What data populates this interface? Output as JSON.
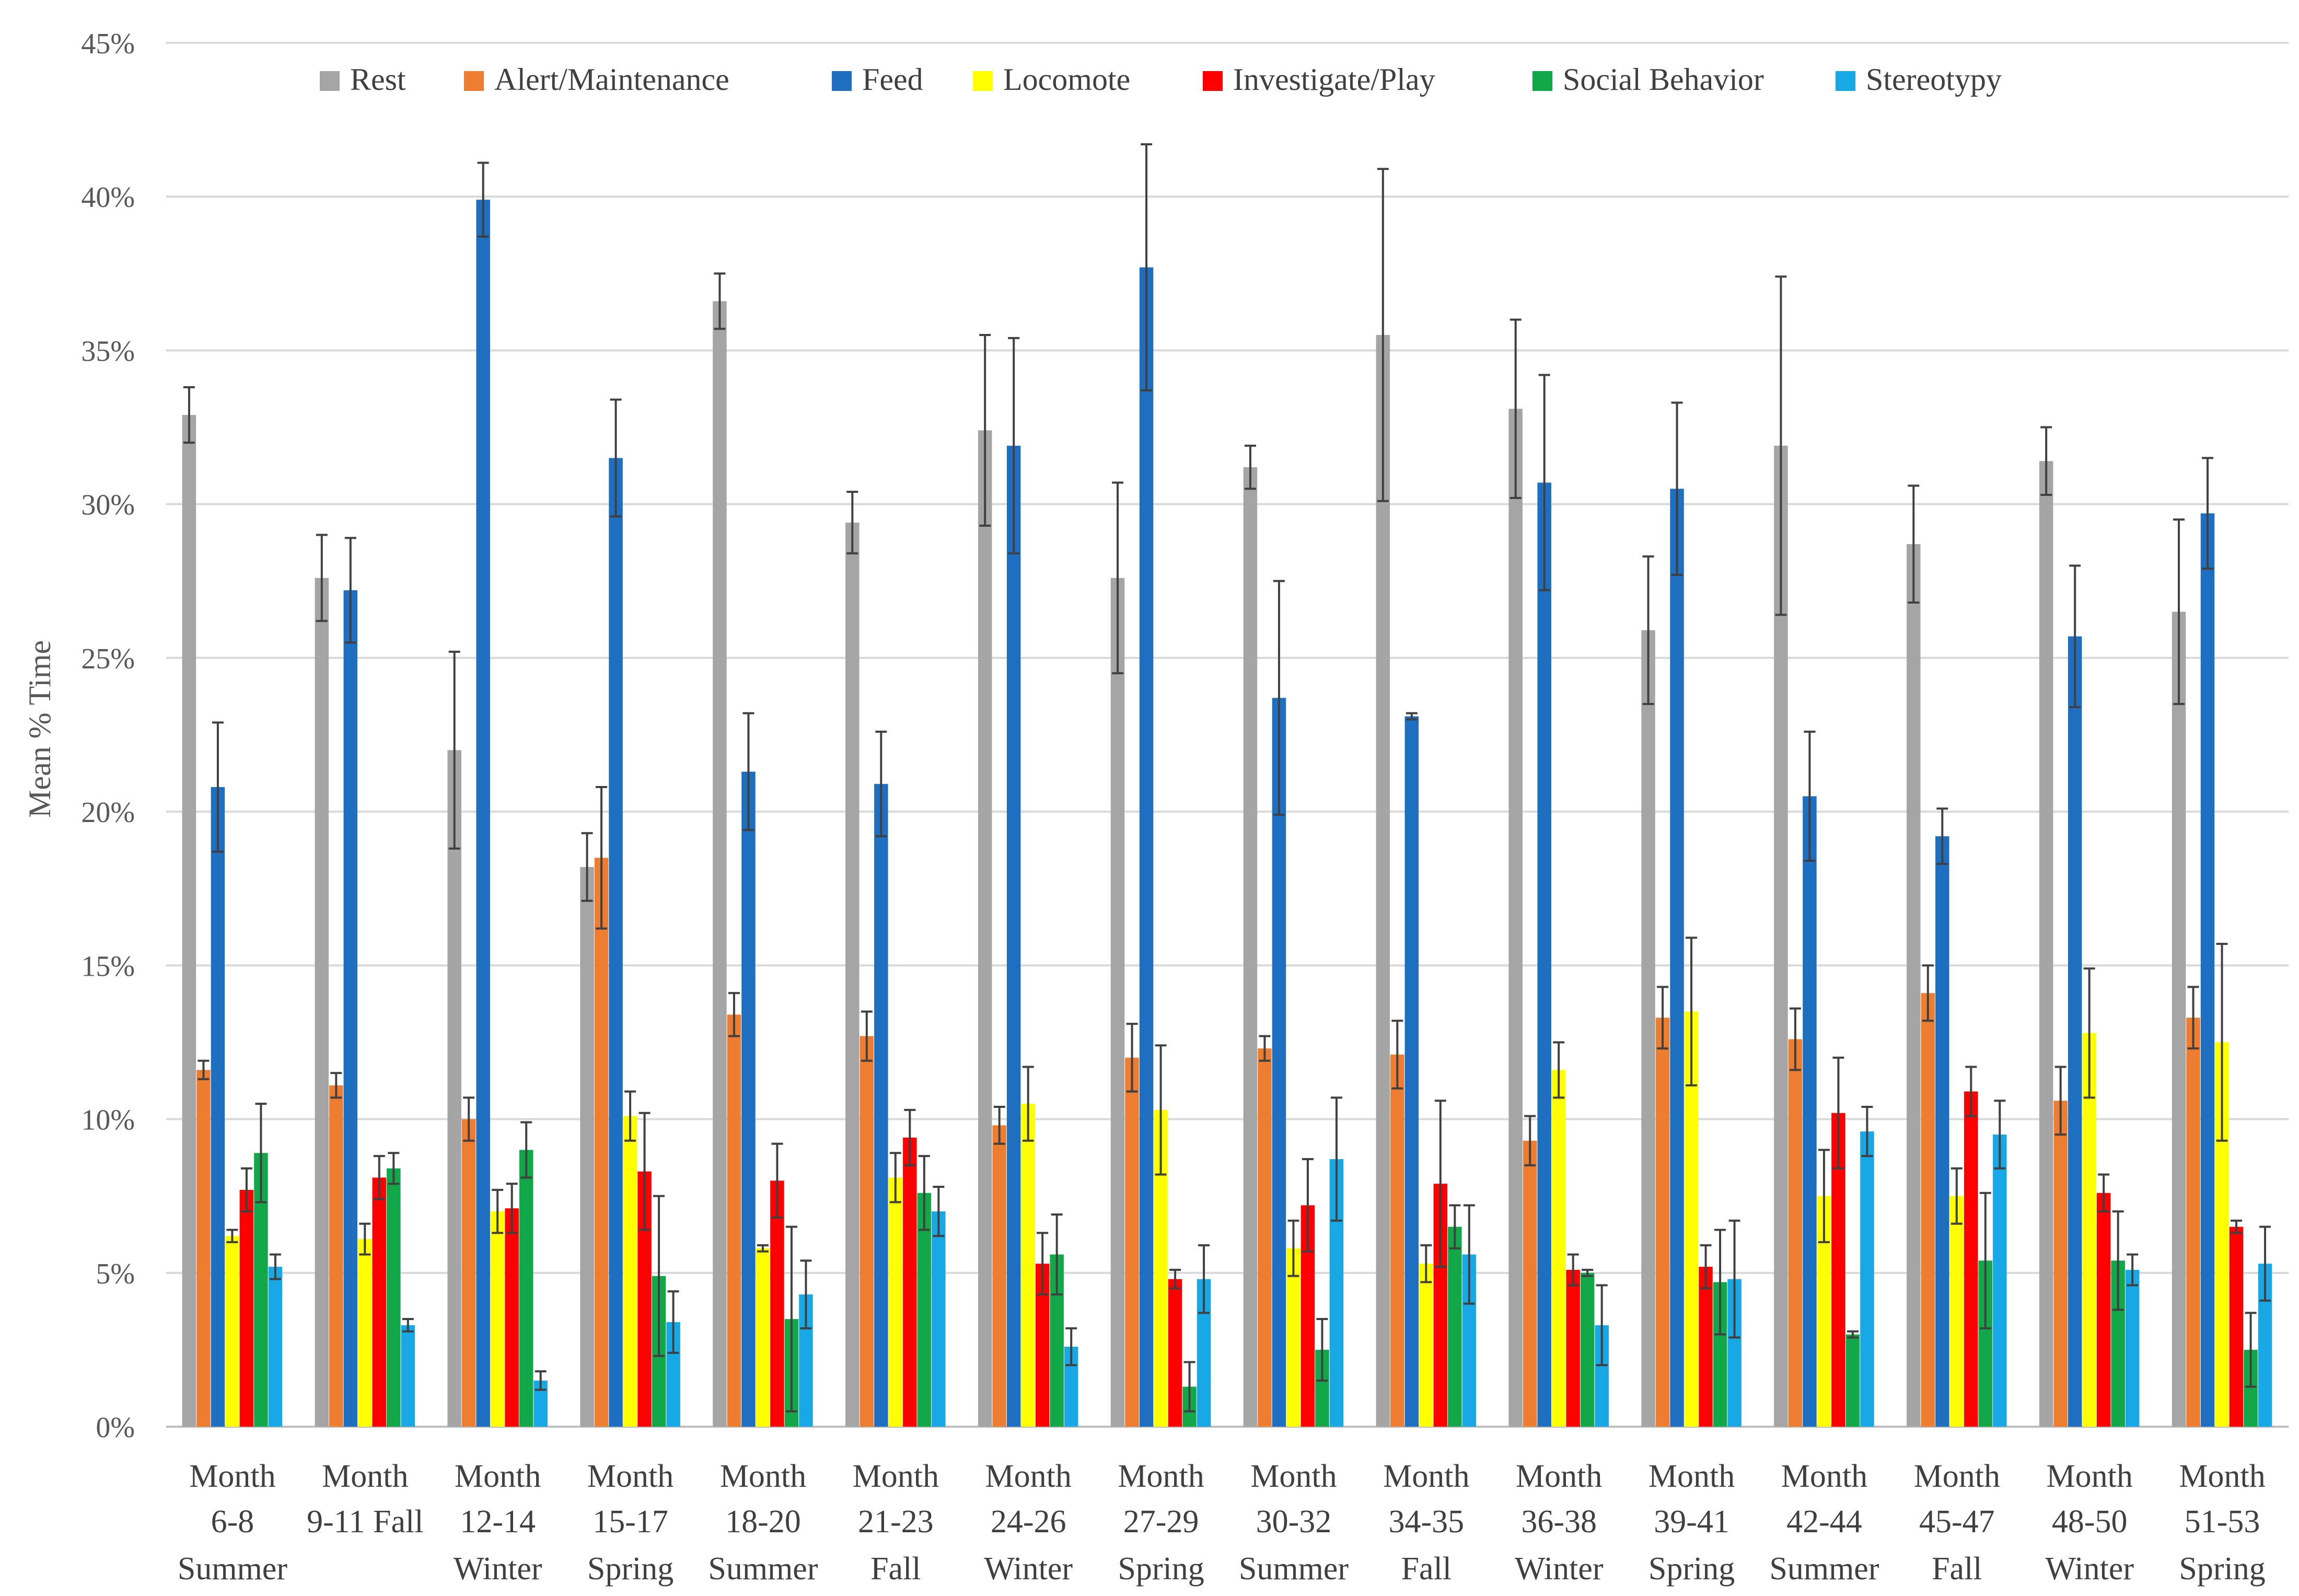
{
  "chart_data": {
    "type": "bar",
    "title": "",
    "xlabel": "",
    "ylabel": "Mean % Time",
    "ylim": [
      0,
      45
    ],
    "yticks": [
      0,
      5,
      10,
      15,
      20,
      25,
      30,
      35,
      40,
      45
    ],
    "ytick_labels": [
      "0%",
      "5%",
      "10%",
      "15%",
      "20%",
      "25%",
      "30%",
      "35%",
      "40%",
      "45%"
    ],
    "grid": true,
    "legend_position": "top",
    "categories": [
      {
        "line1": "Month",
        "line2": "6-8",
        "line3": "Summer"
      },
      {
        "line1": "Month",
        "line2": "9-11 Fall",
        "line3": ""
      },
      {
        "line1": "Month",
        "line2": "12-14",
        "line3": "Winter"
      },
      {
        "line1": "Month",
        "line2": "15-17",
        "line3": "Spring"
      },
      {
        "line1": "Month",
        "line2": "18-20",
        "line3": "Summer"
      },
      {
        "line1": "Month",
        "line2": "21-23",
        "line3": "Fall"
      },
      {
        "line1": "Month",
        "line2": "24-26",
        "line3": "Winter"
      },
      {
        "line1": "Month",
        "line2": "27-29",
        "line3": "Spring"
      },
      {
        "line1": "Month",
        "line2": "30-32",
        "line3": "Summer"
      },
      {
        "line1": "Month",
        "line2": "34-35",
        "line3": "Fall"
      },
      {
        "line1": "Month",
        "line2": "36-38",
        "line3": "Winter"
      },
      {
        "line1": "Month",
        "line2": "39-41",
        "line3": "Spring"
      },
      {
        "line1": "Month",
        "line2": "42-44",
        "line3": "Summer"
      },
      {
        "line1": "Month",
        "line2": "45-47",
        "line3": "Fall"
      },
      {
        "line1": "Month",
        "line2": "48-50",
        "line3": "Winter"
      },
      {
        "line1": "Month",
        "line2": "51-53",
        "line3": "Spring"
      }
    ],
    "series": [
      {
        "name": "Rest",
        "color": "#a5a5a5",
        "values": [
          32.9,
          27.6,
          22.0,
          18.2,
          36.6,
          29.4,
          32.4,
          27.6,
          31.2,
          35.5,
          33.1,
          25.9,
          31.9,
          28.7,
          31.4,
          26.5
        ],
        "errors": [
          0.9,
          1.4,
          3.2,
          1.1,
          0.9,
          1.0,
          3.1,
          3.1,
          0.7,
          5.4,
          2.9,
          2.4,
          5.5,
          1.9,
          1.1,
          3.0
        ]
      },
      {
        "name": "Alert/Maintenance",
        "color": "#ed7d31",
        "values": [
          11.6,
          11.1,
          10.0,
          18.5,
          13.4,
          12.7,
          9.8,
          12.0,
          12.3,
          12.1,
          9.3,
          13.3,
          12.6,
          14.1,
          10.6,
          13.3
        ],
        "errors": [
          0.3,
          0.4,
          0.7,
          2.3,
          0.7,
          0.8,
          0.6,
          1.1,
          0.4,
          1.1,
          0.8,
          1.0,
          1.0,
          0.9,
          1.1,
          1.0
        ]
      },
      {
        "name": "Feed",
        "color": "#1f6fc1",
        "values": [
          20.8,
          27.2,
          39.9,
          31.5,
          21.3,
          20.9,
          31.9,
          37.7,
          23.7,
          23.1,
          30.7,
          30.5,
          20.5,
          19.2,
          25.7,
          29.7
        ],
        "errors": [
          2.1,
          1.7,
          1.2,
          1.9,
          1.9,
          1.7,
          3.5,
          4.0,
          3.8,
          0.1,
          3.5,
          2.8,
          2.1,
          0.9,
          2.3,
          1.8
        ]
      },
      {
        "name": "Locomote",
        "color": "#ffff00",
        "values": [
          6.2,
          6.1,
          7.0,
          10.1,
          5.8,
          8.1,
          10.5,
          10.3,
          5.8,
          5.3,
          11.6,
          13.5,
          7.5,
          7.5,
          12.8,
          12.5
        ],
        "errors": [
          0.2,
          0.5,
          0.7,
          0.8,
          0.1,
          0.8,
          1.2,
          2.1,
          0.9,
          0.6,
          0.9,
          2.4,
          1.5,
          0.9,
          2.1,
          3.2
        ]
      },
      {
        "name": "Investigate/Play",
        "color": "#ff0000",
        "values": [
          7.7,
          8.1,
          7.1,
          8.3,
          8.0,
          9.4,
          5.3,
          4.8,
          7.2,
          7.9,
          5.1,
          5.2,
          10.2,
          10.9,
          7.6,
          6.5
        ],
        "errors": [
          0.7,
          0.7,
          0.8,
          1.9,
          1.2,
          0.9,
          1.0,
          0.3,
          1.5,
          2.7,
          0.5,
          0.7,
          1.8,
          0.8,
          0.6,
          0.2
        ]
      },
      {
        "name": "Social Behavior",
        "color": "#12a84a",
        "values": [
          8.9,
          8.4,
          9.0,
          4.9,
          3.5,
          7.6,
          5.6,
          1.3,
          2.5,
          6.5,
          5.0,
          4.7,
          3.0,
          5.4,
          5.4,
          2.5
        ],
        "errors": [
          1.6,
          0.5,
          0.9,
          2.6,
          3.0,
          1.2,
          1.3,
          0.8,
          1.0,
          0.7,
          0.1,
          1.7,
          0.1,
          2.2,
          1.6,
          1.2
        ]
      },
      {
        "name": "Stereotypy",
        "color": "#18a8e6",
        "values": [
          5.2,
          3.3,
          1.5,
          3.4,
          4.3,
          7.0,
          2.6,
          4.8,
          8.7,
          5.6,
          3.3,
          4.8,
          9.6,
          9.5,
          5.1,
          5.3
        ],
        "errors": [
          0.4,
          0.2,
          0.3,
          1.0,
          1.1,
          0.8,
          0.6,
          1.1,
          2.0,
          1.6,
          1.3,
          1.9,
          0.8,
          1.1,
          0.5,
          1.2
        ]
      }
    ]
  }
}
